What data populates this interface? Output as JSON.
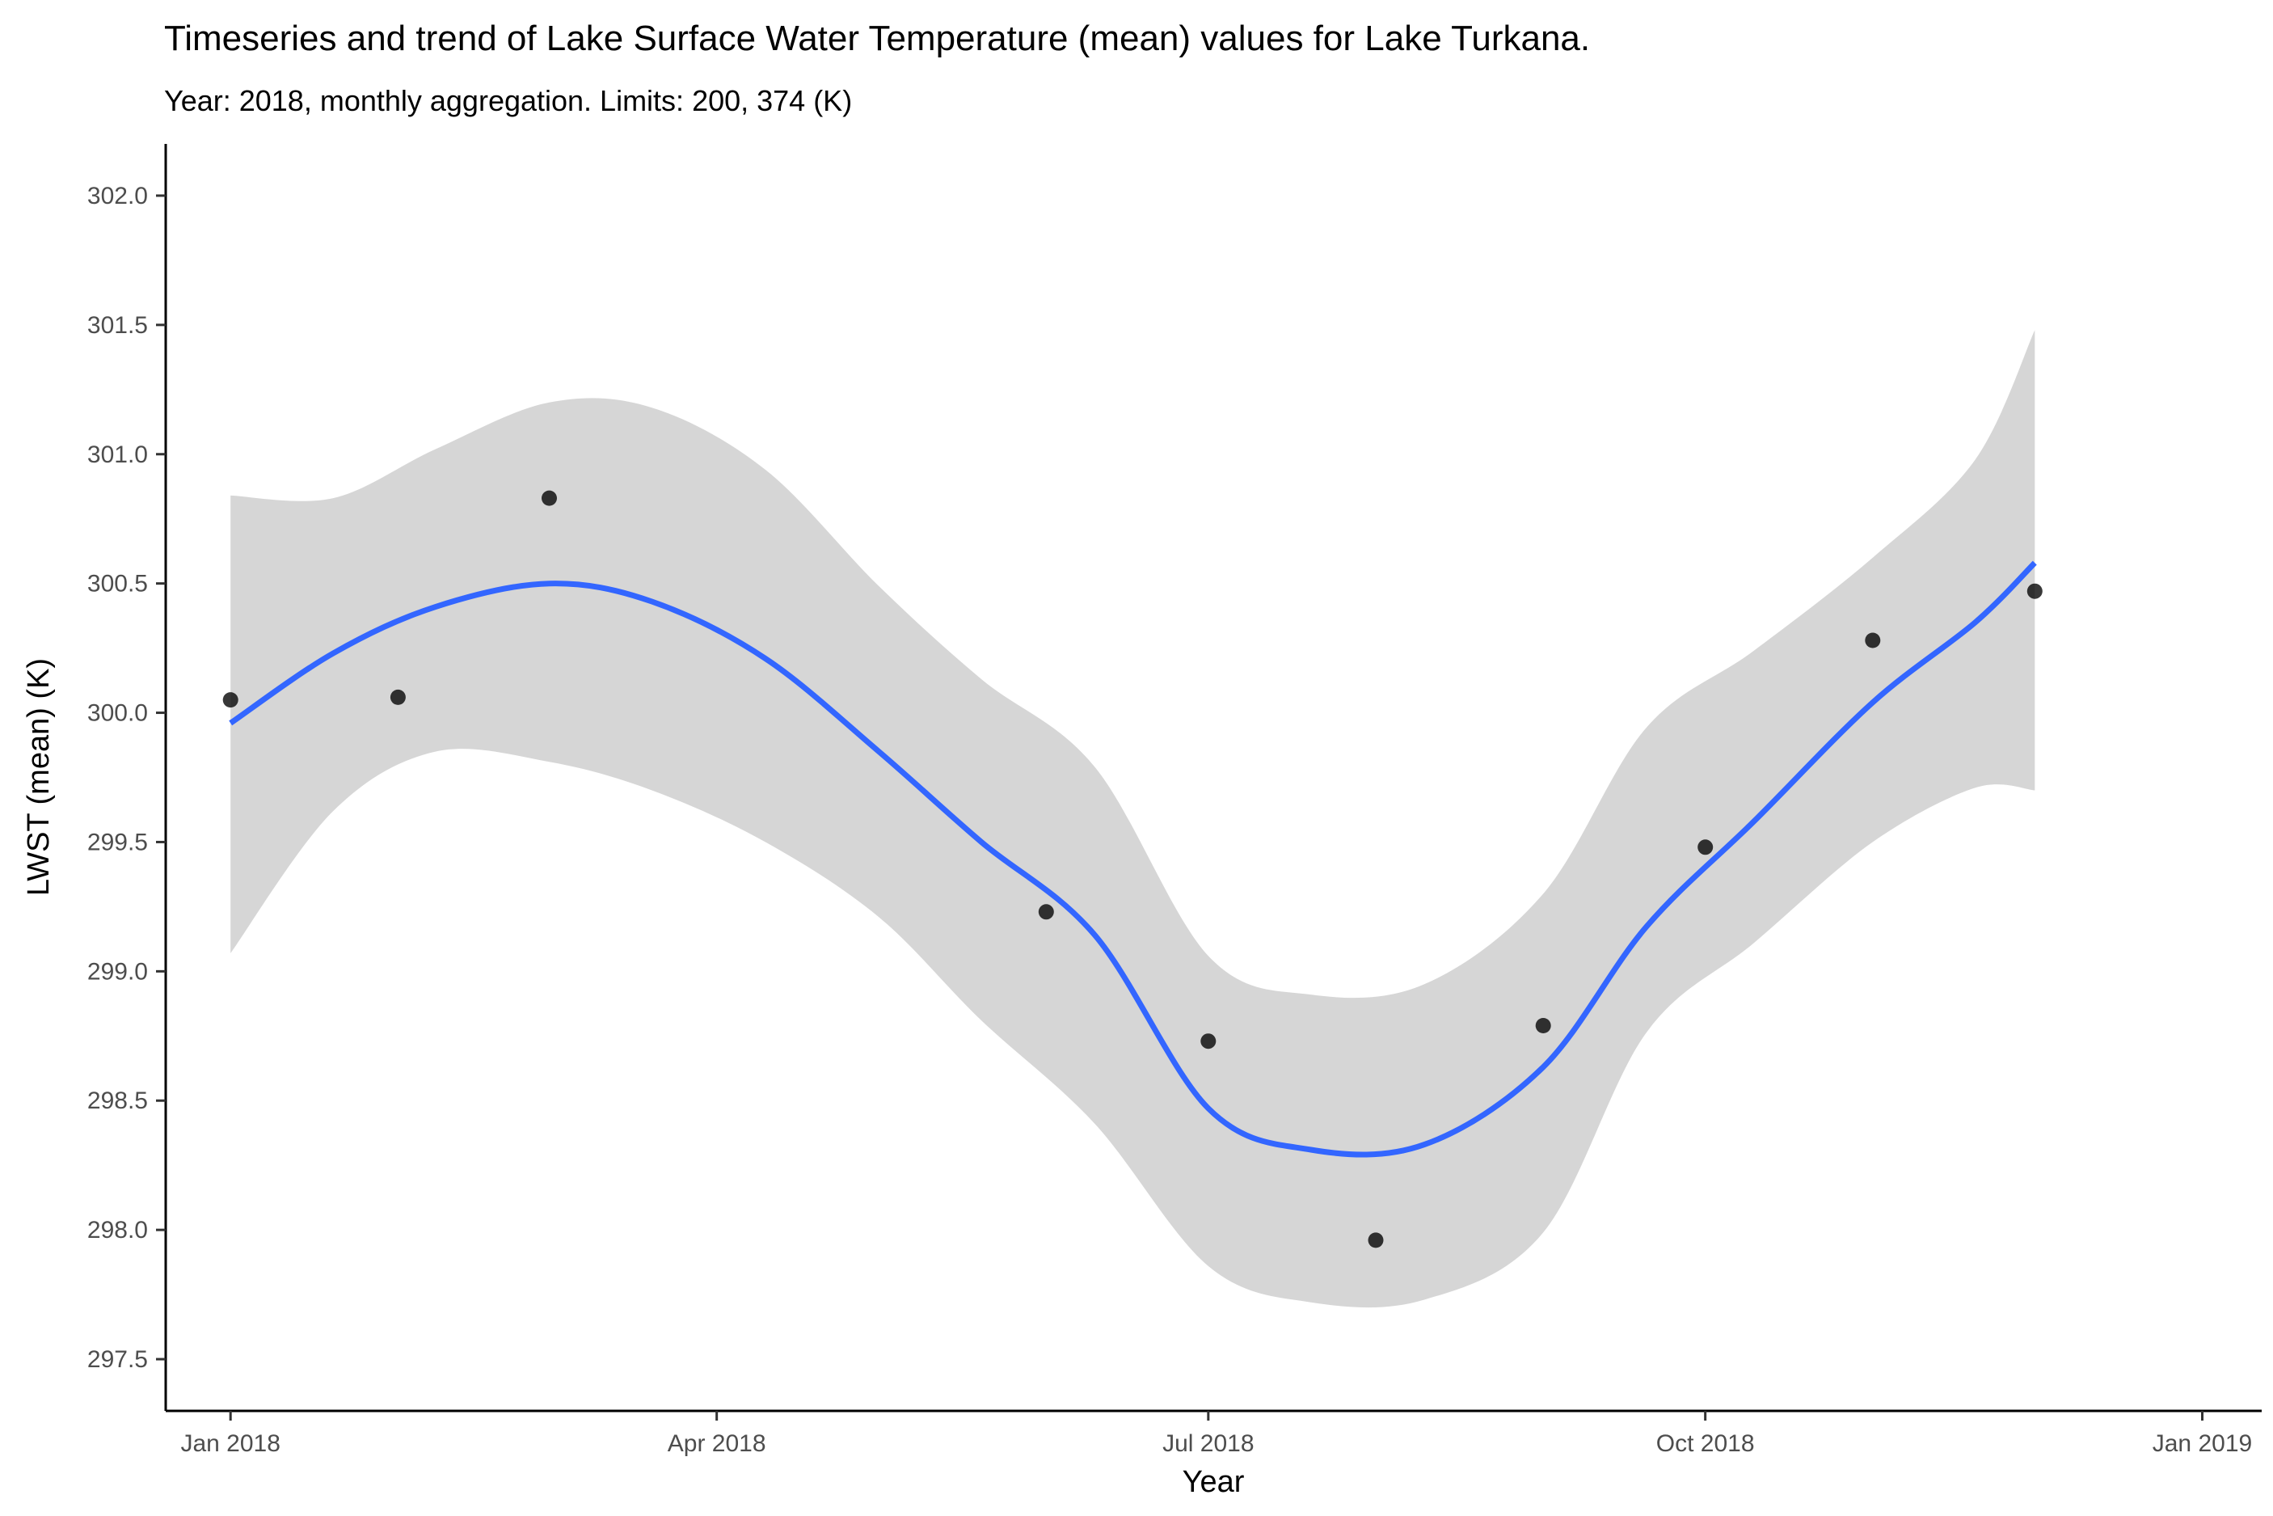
{
  "chart_data": {
    "type": "scatter",
    "title": "Timeseries and trend of Lake Surface Water Temperature (mean) values for Lake Turkana.",
    "subtitle": "Year: 2018, monthly aggregation. Limits: 200, 374 (K)",
    "xlabel": "Year",
    "ylabel": "LWST (mean) (K)",
    "xlim": [
      "2017-12-20",
      "2019-01-12"
    ],
    "ylim": [
      297.3,
      302.2
    ],
    "x_ticks": [
      {
        "date": "2018-01-01",
        "label": "Jan 2018"
      },
      {
        "date": "2018-04-01",
        "label": "Apr 2018"
      },
      {
        "date": "2018-07-01",
        "label": "Jul 2018"
      },
      {
        "date": "2018-10-01",
        "label": "Oct 2018"
      },
      {
        "date": "2019-01-01",
        "label": "Jan 2019"
      }
    ],
    "y_ticks": [
      {
        "value": 297.5,
        "label": "297.5"
      },
      {
        "value": 298.0,
        "label": "298.0"
      },
      {
        "value": 298.5,
        "label": "298.5"
      },
      {
        "value": 299.0,
        "label": "299.0"
      },
      {
        "value": 299.5,
        "label": "299.5"
      },
      {
        "value": 300.0,
        "label": "300.0"
      },
      {
        "value": 300.5,
        "label": "300.5"
      },
      {
        "value": 301.0,
        "label": "301.0"
      },
      {
        "value": 301.5,
        "label": "301.5"
      },
      {
        "value": 302.0,
        "label": "302.0"
      }
    ],
    "grid": false,
    "points": [
      {
        "x": "2018-01-01",
        "y": 300.05
      },
      {
        "x": "2018-02-01",
        "y": 300.06
      },
      {
        "x": "2018-03-01",
        "y": 300.83
      },
      {
        "x": "2018-06-01",
        "y": 299.23
      },
      {
        "x": "2018-07-01",
        "y": 298.73
      },
      {
        "x": "2018-08-01",
        "y": 297.96
      },
      {
        "x": "2018-09-01",
        "y": 298.79
      },
      {
        "x": "2018-10-01",
        "y": 299.48
      },
      {
        "x": "2018-11-01",
        "y": 300.28
      },
      {
        "x": "2018-12-01",
        "y": 300.47
      }
    ],
    "trend": {
      "method": "loess",
      "color": "#3366ff",
      "band_color": "#d6d6d6",
      "x": [
        "2018-01-01",
        "2018-01-20",
        "2018-02-08",
        "2018-03-01",
        "2018-03-20",
        "2018-04-10",
        "2018-05-01",
        "2018-05-20",
        "2018-06-10",
        "2018-07-01",
        "2018-07-20",
        "2018-08-10",
        "2018-09-01",
        "2018-09-20",
        "2018-10-10",
        "2018-11-01",
        "2018-11-20",
        "2018-12-01"
      ],
      "fit": [
        299.96,
        300.23,
        300.41,
        300.5,
        300.43,
        300.21,
        299.85,
        299.5,
        299.14,
        298.47,
        298.31,
        298.33,
        298.63,
        299.17,
        299.58,
        300.04,
        300.35,
        300.58
      ],
      "lower": [
        299.07,
        299.62,
        299.85,
        299.81,
        299.7,
        299.5,
        299.21,
        298.81,
        298.41,
        297.86,
        297.72,
        297.73,
        297.99,
        298.76,
        299.11,
        299.5,
        299.71,
        299.7
      ],
      "upper": [
        300.84,
        300.83,
        301.02,
        301.2,
        301.18,
        300.94,
        300.49,
        300.13,
        299.79,
        299.06,
        298.91,
        298.95,
        299.3,
        299.94,
        300.24,
        300.6,
        300.98,
        301.48
      ]
    }
  }
}
